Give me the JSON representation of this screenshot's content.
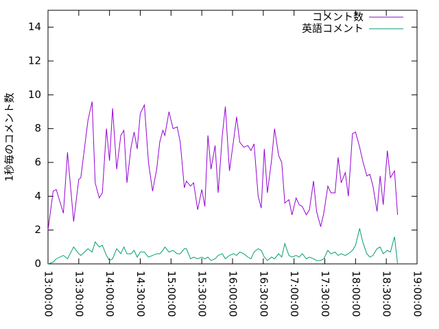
{
  "chart_data": {
    "type": "line",
    "y_label": "1秒毎のコメント数",
    "x": [
      "13:00:00",
      "13:05:00",
      "13:08:00",
      "13:15:00",
      "13:19:00",
      "13:25:00",
      "13:30:00",
      "13:32:00",
      "13:39:00",
      "13:43:00",
      "13:46:00",
      "13:50:00",
      "13:53:00",
      "13:57:00",
      "14:00:00",
      "14:03:00",
      "14:07:00",
      "14:11:00",
      "14:14:00",
      "14:17:00",
      "14:21:00",
      "14:24:00",
      "14:27:00",
      "14:30:00",
      "14:34:00",
      "14:38:00",
      "14:42:00",
      "14:46:00",
      "14:49:00",
      "14:52:00",
      "14:54:00",
      "14:58:00",
      "15:02:00",
      "15:06:00",
      "15:09:00",
      "15:13:00",
      "15:15:00",
      "15:19:00",
      "15:22:00",
      "15:26:00",
      "15:30:00",
      "15:33:00",
      "15:36:00",
      "15:39:00",
      "15:43:00",
      "15:46:00",
      "15:50:00",
      "15:53:00",
      "15:57:00",
      "16:01:00",
      "16:04:00",
      "16:07:00",
      "16:11:00",
      "16:15:00",
      "16:18:00",
      "16:21:00",
      "16:25:00",
      "16:28:00",
      "16:31:00",
      "16:34:00",
      "16:38:00",
      "16:41:00",
      "16:45:00",
      "16:48:00",
      "16:51:00",
      "16:55:00",
      "16:58:00",
      "17:02:00",
      "17:05:00",
      "17:08:00",
      "17:12:00",
      "17:15:00",
      "17:19:00",
      "17:22:00",
      "17:26:00",
      "17:29:00",
      "17:33:00",
      "17:36:00",
      "17:40:00",
      "17:43:00",
      "17:46:00",
      "17:50:00",
      "17:53:00",
      "17:57:00",
      "18:00:00",
      "18:04:00",
      "18:07:00",
      "18:11:00",
      "18:14:00",
      "18:17:00",
      "18:21:00",
      "18:24:00",
      "18:27:00",
      "18:31:00",
      "18:34:00",
      "18:38:00",
      "18:41:00"
    ],
    "series": [
      {
        "name": "コメント数",
        "color": "#9400d3",
        "values": [
          2.0,
          4.3,
          4.4,
          3.0,
          6.6,
          2.5,
          5.0,
          5.1,
          8.5,
          9.6,
          4.8,
          3.9,
          4.2,
          8.0,
          6.1,
          9.2,
          5.6,
          7.6,
          7.9,
          4.8,
          6.9,
          7.8,
          6.8,
          8.9,
          9.4,
          6.0,
          4.3,
          5.6,
          7.2,
          7.9,
          7.6,
          9.0,
          8.0,
          8.1,
          7.2,
          4.5,
          4.9,
          4.6,
          4.8,
          3.2,
          4.4,
          3.4,
          7.6,
          5.6,
          7.0,
          4.2,
          7.6,
          9.3,
          5.5,
          7.3,
          8.7,
          7.2,
          6.9,
          7.0,
          6.7,
          7.1,
          4.0,
          3.3,
          6.8,
          4.2,
          6.1,
          8.0,
          6.4,
          6.0,
          3.6,
          3.8,
          2.9,
          3.9,
          3.5,
          3.4,
          2.9,
          3.2,
          4.9,
          3.1,
          2.2,
          3.0,
          4.6,
          4.2,
          4.2,
          6.3,
          4.8,
          5.4,
          4.0,
          7.7,
          7.8,
          6.9,
          6.1,
          5.2,
          5.3,
          4.6,
          3.1,
          5.2,
          3.5,
          6.7,
          5.1,
          5.5,
          2.9
        ]
      },
      {
        "name": "英語コメント",
        "color": "#009e73",
        "values": [
          0.0,
          0.1,
          0.3,
          0.5,
          0.3,
          1.0,
          0.6,
          0.5,
          0.9,
          0.7,
          1.3,
          1.0,
          1.1,
          0.5,
          0.2,
          0.3,
          0.9,
          0.6,
          1.0,
          0.6,
          0.6,
          0.8,
          0.4,
          0.7,
          0.7,
          0.4,
          0.5,
          0.6,
          0.6,
          0.8,
          1.0,
          0.7,
          0.8,
          0.6,
          0.6,
          0.9,
          0.9,
          0.3,
          0.4,
          0.3,
          0.4,
          0.3,
          0.4,
          0.2,
          0.3,
          0.5,
          0.6,
          0.3,
          0.5,
          0.6,
          0.5,
          0.7,
          0.6,
          0.4,
          0.3,
          0.7,
          0.9,
          0.8,
          0.4,
          0.2,
          0.4,
          0.3,
          0.6,
          0.4,
          1.2,
          0.5,
          0.4,
          0.5,
          0.4,
          0.6,
          0.3,
          0.4,
          0.3,
          0.2,
          0.2,
          0.3,
          0.8,
          0.6,
          0.7,
          0.5,
          0.6,
          0.5,
          0.6,
          0.8,
          1.1,
          2.1,
          1.3,
          0.6,
          0.4,
          0.5,
          0.9,
          1.0,
          0.6,
          0.8,
          0.7,
          1.6,
          0.0
        ]
      }
    ],
    "xlim": [
      "13:00:00",
      "19:00:00"
    ],
    "xticks": [
      "13:00:00",
      "13:30:00",
      "14:00:00",
      "14:30:00",
      "15:00:00",
      "15:30:00",
      "16:00:00",
      "16:30:00",
      "17:00:00",
      "17:30:00",
      "18:00:00",
      "18:30:00",
      "19:00:00"
    ],
    "ylim": [
      0,
      15
    ],
    "yticks": [
      0,
      2,
      4,
      6,
      8,
      10,
      12,
      14
    ],
    "grid": false,
    "legend_position": "top-right"
  }
}
